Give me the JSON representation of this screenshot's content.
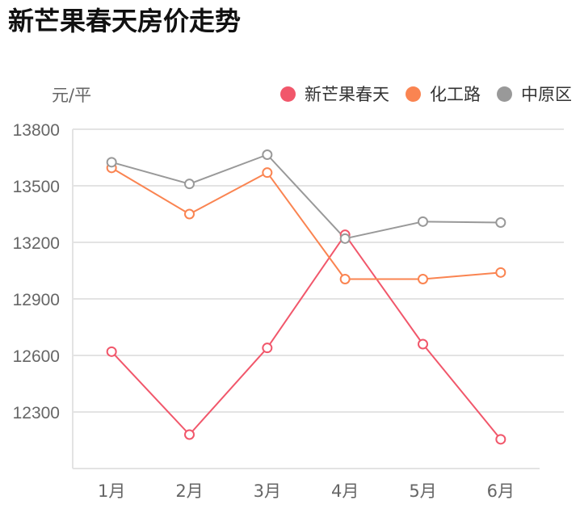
{
  "title": "新芒果春天房价走势",
  "unit_label": "元/平",
  "legend": [
    {
      "label": "新芒果春天",
      "color": "#f1576b"
    },
    {
      "label": "化工路",
      "color": "#fa8451"
    },
    {
      "label": "中原区",
      "color": "#999999"
    }
  ],
  "chart_data": {
    "type": "line",
    "title": "新芒果春天房价走势",
    "xlabel": "",
    "ylabel": "元/平",
    "categories": [
      "1月",
      "2月",
      "3月",
      "4月",
      "5月",
      "6月"
    ],
    "y_ticks": [
      12300,
      12600,
      12900,
      13200,
      13500,
      13800
    ],
    "ylim": [
      12000,
      13800
    ],
    "grid": true,
    "legend_position": "top-right",
    "series": [
      {
        "name": "新芒果春天",
        "color": "#f1576b",
        "values": [
          12620,
          12180,
          12640,
          13240,
          12660,
          12155
        ]
      },
      {
        "name": "化工路",
        "color": "#fa8451",
        "values": [
          13595,
          13350,
          13570,
          13005,
          13005,
          13040
        ]
      },
      {
        "name": "中原区",
        "color": "#999999",
        "values": [
          13625,
          13510,
          13665,
          13220,
          13310,
          13305
        ]
      }
    ]
  }
}
